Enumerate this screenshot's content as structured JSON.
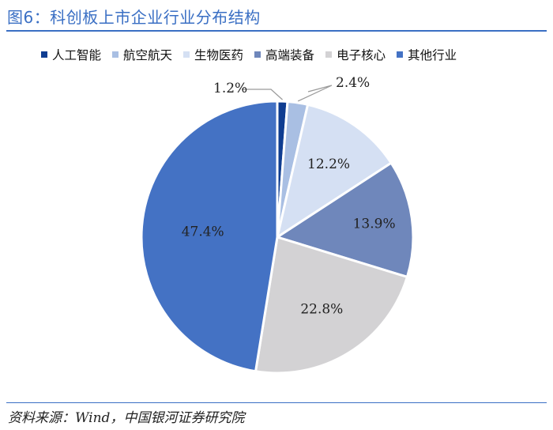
{
  "title": "图6：科创板上市企业行业分布结构",
  "source": "资料来源：Wind，中国银河证券研究院",
  "chart_data": {
    "type": "pie",
    "title": "",
    "start_angle_deg": 0,
    "direction": "clockwise",
    "slices": [
      {
        "name": "人工智能",
        "value": 1.2,
        "label": "1.2%",
        "color": "#0f3d91"
      },
      {
        "name": "航空航天",
        "value": 2.4,
        "label": "2.4%",
        "color": "#a9bfe3"
      },
      {
        "name": "生物医药",
        "value": 12.2,
        "label": "12.2%",
        "color": "#d5e0f3"
      },
      {
        "name": "高端装备",
        "value": 13.9,
        "label": "13.9%",
        "color": "#6f87bb"
      },
      {
        "name": "电子核心",
        "value": 22.8,
        "label": "22.8%",
        "color": "#d3d2d4"
      },
      {
        "name": "其他行业",
        "value": 47.4,
        "label": "47.4%",
        "color": "#4472c4"
      }
    ],
    "legend_position": "top"
  }
}
